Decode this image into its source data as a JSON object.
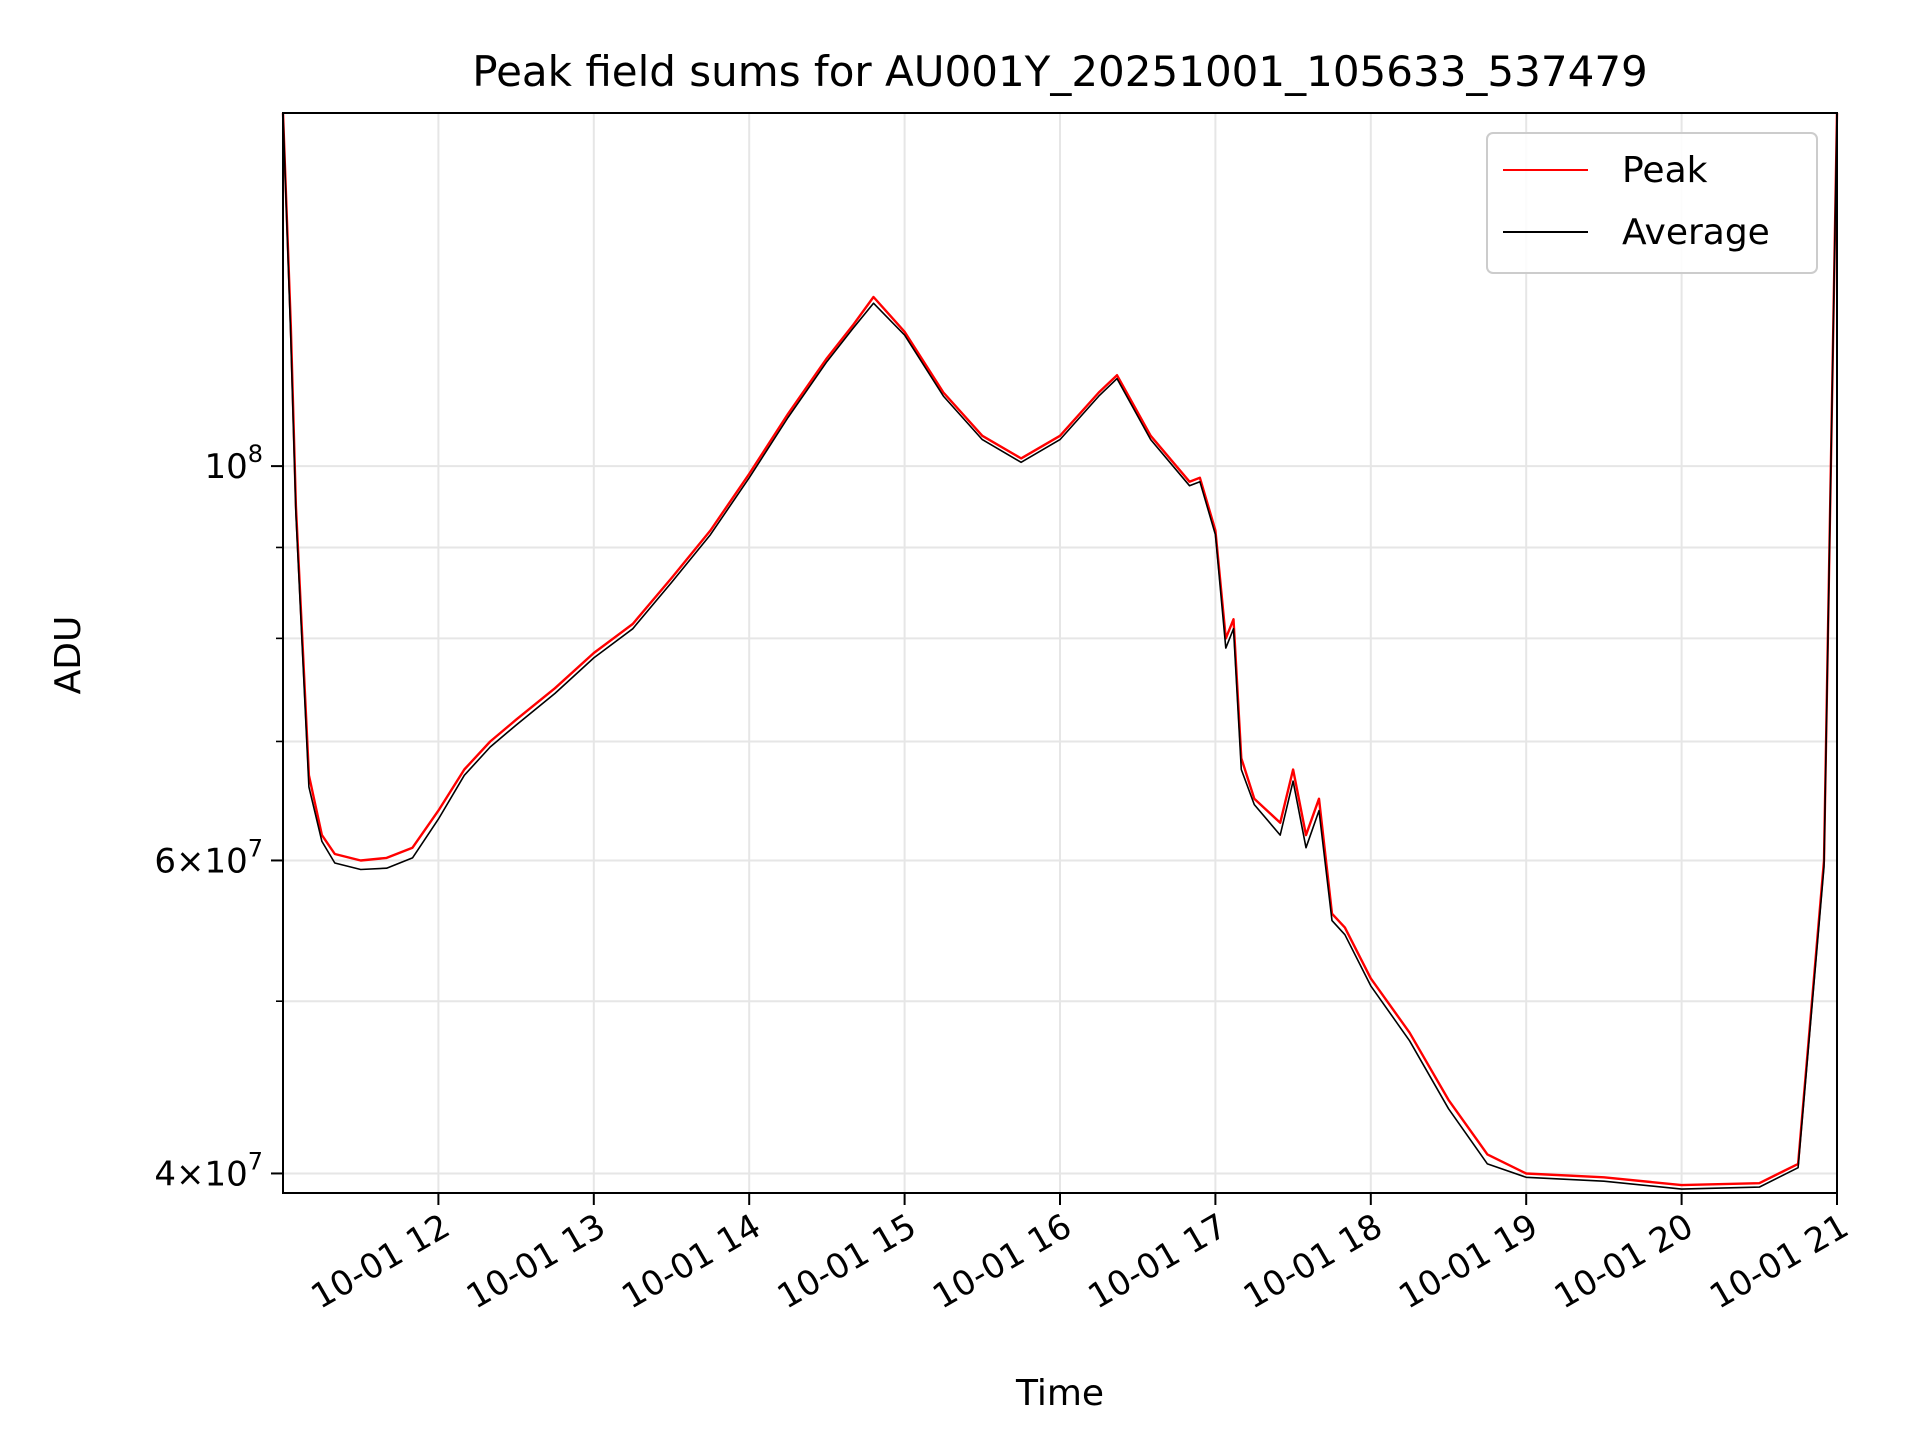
{
  "chart_data": {
    "type": "line",
    "title": "Peak field sums for AU001Y_20251001_105633_537479",
    "xlabel": "Time",
    "ylabel": "ADU",
    "yscale": "log",
    "grid": true,
    "legend_position": "top-right",
    "xlim": [
      "2025-10-01T11:00",
      "2025-10-01T21:00"
    ],
    "ylim": [
      39000000,
      158000000
    ],
    "x_ticks": [
      "10-01 12",
      "10-01 13",
      "10-01 14",
      "10-01 15",
      "10-01 16",
      "10-01 17",
      "10-01 18",
      "10-01 19",
      "10-01 20",
      "10-01 21"
    ],
    "x_tick_values": [
      "2025-10-01T12:00",
      "2025-10-01T13:00",
      "2025-10-01T14:00",
      "2025-10-01T15:00",
      "2025-10-01T16:00",
      "2025-10-01T17:00",
      "2025-10-01T18:00",
      "2025-10-01T19:00",
      "2025-10-01T20:00",
      "2025-10-01T21:00"
    ],
    "y_ticks": [
      {
        "value": 100000000,
        "mantissa": "",
        "base": "10",
        "exponent": "8"
      },
      {
        "value": 60000000,
        "mantissa": "6",
        "base": "10",
        "exponent": "7"
      },
      {
        "value": 40000000,
        "mantissa": "4",
        "base": "10",
        "exponent": "7"
      }
    ],
    "y_minor_ticks": [
      50000000,
      70000000,
      80000000,
      90000000
    ],
    "series": [
      {
        "name": "Peak",
        "color": "#ff0000",
        "x": [
          "2025-10-01T11:00",
          "2025-10-01T11:03",
          "2025-10-01T11:05",
          "2025-10-01T11:10",
          "2025-10-01T11:15",
          "2025-10-01T11:20",
          "2025-10-01T11:30",
          "2025-10-01T11:40",
          "2025-10-01T11:50",
          "2025-10-01T12:00",
          "2025-10-01T12:10",
          "2025-10-01T12:20",
          "2025-10-01T12:30",
          "2025-10-01T12:45",
          "2025-10-01T13:00",
          "2025-10-01T13:15",
          "2025-10-01T13:30",
          "2025-10-01T13:45",
          "2025-10-01T14:00",
          "2025-10-01T14:15",
          "2025-10-01T14:30",
          "2025-10-01T14:40",
          "2025-10-01T14:48",
          "2025-10-01T15:00",
          "2025-10-01T15:15",
          "2025-10-01T15:30",
          "2025-10-01T15:45",
          "2025-10-01T16:00",
          "2025-10-01T16:15",
          "2025-10-01T16:22",
          "2025-10-01T16:35",
          "2025-10-01T16:50",
          "2025-10-01T16:54",
          "2025-10-01T17:00",
          "2025-10-01T17:04",
          "2025-10-01T17:07",
          "2025-10-01T17:10",
          "2025-10-01T17:15",
          "2025-10-01T17:25",
          "2025-10-01T17:30",
          "2025-10-01T17:35",
          "2025-10-01T17:40",
          "2025-10-01T17:45",
          "2025-10-01T17:50",
          "2025-10-01T18:00",
          "2025-10-01T18:15",
          "2025-10-01T18:30",
          "2025-10-01T18:45",
          "2025-10-01T19:00",
          "2025-10-01T19:30",
          "2025-10-01T20:00",
          "2025-10-01T20:30",
          "2025-10-01T20:45",
          "2025-10-01T20:55",
          "2025-10-01T21:00"
        ],
        "y": [
          158000000,
          120000000,
          95000000,
          67000000,
          62000000,
          60500000,
          60000000,
          60200000,
          61000000,
          64000000,
          67500000,
          70000000,
          72000000,
          75000000,
          78500000,
          81500000,
          86500000,
          92000000,
          99000000,
          107000000,
          115000000,
          120000000,
          124500000,
          119000000,
          110000000,
          104000000,
          101000000,
          104000000,
          110000000,
          112500000,
          104000000,
          98000000,
          98500000,
          92000000,
          80000000,
          82000000,
          68500000,
          65000000,
          63000000,
          67500000,
          62000000,
          65000000,
          56000000,
          55000000,
          51500000,
          48000000,
          44000000,
          41000000,
          40000000,
          39800000,
          39400000,
          39500000,
          40500000,
          60000000,
          158000000
        ]
      },
      {
        "name": "Average",
        "color": "#000000",
        "x": [
          "2025-10-01T11:00",
          "2025-10-01T11:03",
          "2025-10-01T11:05",
          "2025-10-01T11:10",
          "2025-10-01T11:15",
          "2025-10-01T11:20",
          "2025-10-01T11:30",
          "2025-10-01T11:40",
          "2025-10-01T11:50",
          "2025-10-01T12:00",
          "2025-10-01T12:10",
          "2025-10-01T12:20",
          "2025-10-01T12:30",
          "2025-10-01T12:45",
          "2025-10-01T13:00",
          "2025-10-01T13:15",
          "2025-10-01T13:30",
          "2025-10-01T13:45",
          "2025-10-01T14:00",
          "2025-10-01T14:15",
          "2025-10-01T14:30",
          "2025-10-01T14:40",
          "2025-10-01T14:48",
          "2025-10-01T15:00",
          "2025-10-01T15:15",
          "2025-10-01T15:30",
          "2025-10-01T15:45",
          "2025-10-01T16:00",
          "2025-10-01T16:15",
          "2025-10-01T16:22",
          "2025-10-01T16:35",
          "2025-10-01T16:50",
          "2025-10-01T16:54",
          "2025-10-01T17:00",
          "2025-10-01T17:04",
          "2025-10-01T17:07",
          "2025-10-01T17:10",
          "2025-10-01T17:15",
          "2025-10-01T17:25",
          "2025-10-01T17:30",
          "2025-10-01T17:35",
          "2025-10-01T17:40",
          "2025-10-01T17:45",
          "2025-10-01T17:50",
          "2025-10-01T18:00",
          "2025-10-01T18:15",
          "2025-10-01T18:30",
          "2025-10-01T18:45",
          "2025-10-01T19:00",
          "2025-10-01T19:30",
          "2025-10-01T20:00",
          "2025-10-01T20:30",
          "2025-10-01T20:45",
          "2025-10-01T20:55",
          "2025-10-01T21:00"
        ],
        "y": [
          158000000,
          118000000,
          94000000,
          66000000,
          61500000,
          59800000,
          59300000,
          59400000,
          60200000,
          63300000,
          67000000,
          69500000,
          71500000,
          74500000,
          78000000,
          81000000,
          86000000,
          91500000,
          98500000,
          106500000,
          114500000,
          119500000,
          123500000,
          118500000,
          109500000,
          103500000,
          100500000,
          103500000,
          109500000,
          112000000,
          103500000,
          97500000,
          98000000,
          91500000,
          79000000,
          81000000,
          67500000,
          64500000,
          62000000,
          66500000,
          61000000,
          64000000,
          55500000,
          54500000,
          51000000,
          47500000,
          43500000,
          40500000,
          39800000,
          39600000,
          39200000,
          39300000,
          40300000,
          59500000,
          158000000
        ]
      }
    ]
  }
}
